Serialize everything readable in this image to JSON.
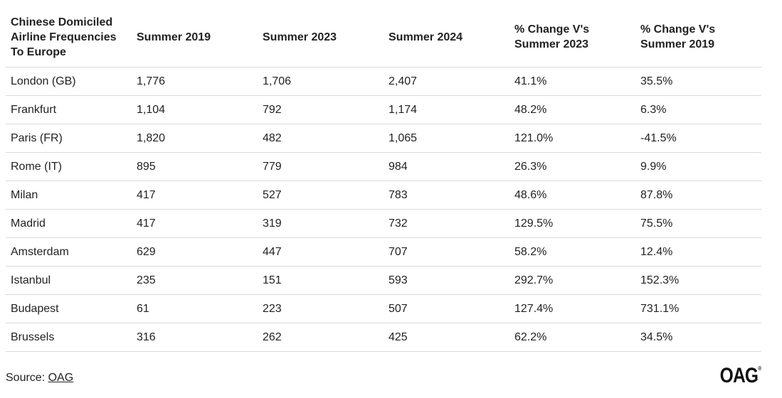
{
  "chart_data": {
    "type": "table",
    "columns": [
      "Chinese Domiciled Airline Frequencies To Europe",
      "Summer 2019",
      "Summer 2023",
      "Summer 2024",
      "% Change V's Summer 2023",
      "% Change V's Summer 2019"
    ],
    "rows": [
      [
        "London (GB)",
        "1,776",
        "1,706",
        "2,407",
        "41.1%",
        "35.5%"
      ],
      [
        "Frankfurt",
        "1,104",
        "792",
        "1,174",
        "48.2%",
        "6.3%"
      ],
      [
        "Paris (FR)",
        "1,820",
        "482",
        "1,065",
        "121.0%",
        "-41.5%"
      ],
      [
        "Rome (IT)",
        "895",
        "779",
        "984",
        "26.3%",
        "9.9%"
      ],
      [
        "Milan",
        "417",
        "527",
        "783",
        "48.6%",
        "87.8%"
      ],
      [
        "Madrid",
        "417",
        "319",
        "732",
        "129.5%",
        "75.5%"
      ],
      [
        "Amsterdam",
        "629",
        "447",
        "707",
        "58.2%",
        "12.4%"
      ],
      [
        "Istanbul",
        "235",
        "151",
        "593",
        "292.7%",
        "152.3%"
      ],
      [
        "Budapest",
        "61",
        "223",
        "507",
        "127.4%",
        "731.1%"
      ],
      [
        "Brussels",
        "316",
        "262",
        "425",
        "62.2%",
        "34.5%"
      ]
    ]
  },
  "footer": {
    "source_label": "Source: ",
    "source_link": "OAG",
    "logo_text": "OAG",
    "logo_mark": "®"
  }
}
